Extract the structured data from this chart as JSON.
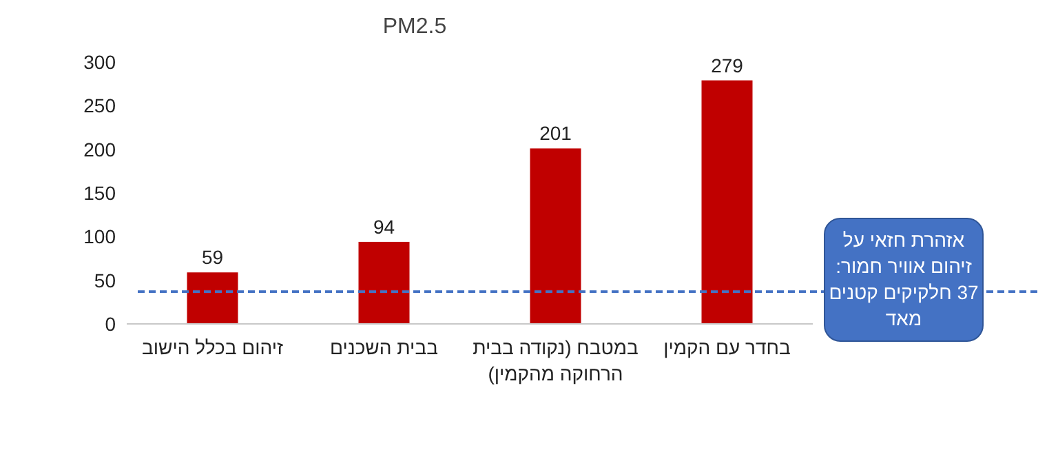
{
  "chart_data": {
    "type": "bar",
    "title": "PM2.5",
    "categories": [
      "זיהום בכלל הישוב",
      "בבית השכנים",
      "במטבח (נקודה בבית הרחוקה מהקמין)",
      "בחדר עם הקמין"
    ],
    "values": [
      59,
      94,
      201,
      279
    ],
    "color": "#c00000",
    "data_labels": true,
    "ylim": [
      0,
      300
    ],
    "yticks": [
      0,
      50,
      100,
      150,
      200,
      250,
      300
    ],
    "ref_lines": [
      {
        "axis": "y",
        "value": 37,
        "label": "אזהרת חזאי על זיהום אוויר חמור: 37 חלקיקים קטנים מאד",
        "color": "#4472c4",
        "line_style": "dashed"
      }
    ]
  }
}
